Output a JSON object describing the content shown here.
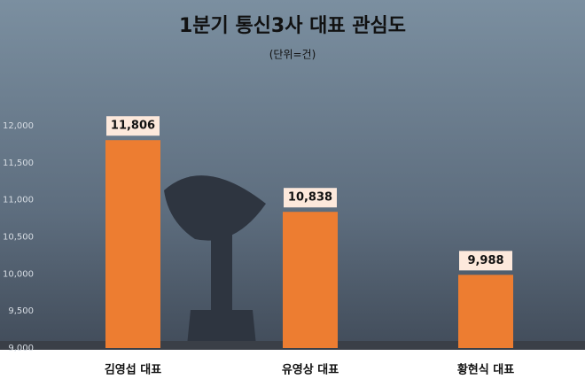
{
  "chart_data": {
    "type": "bar",
    "title": "1분기 통신3사 대표 관심도",
    "subtitle": "(단위=건)",
    "categories": [
      "김영섭 대표",
      "유영상 대표",
      "황현식 대표"
    ],
    "values": [
      11806,
      10838,
      9988
    ],
    "value_labels": [
      "11,806",
      "10,838",
      "9,988"
    ],
    "color": "#ed7d31",
    "ylim": [
      9000,
      12000
    ],
    "yticks": [
      {
        "value": 9000,
        "label": "9,000"
      },
      {
        "value": 9500,
        "label": "9,500"
      },
      {
        "value": 10000,
        "label": "10,000"
      },
      {
        "value": 10500,
        "label": "10,500"
      },
      {
        "value": 11000,
        "label": "11,000"
      },
      {
        "value": 11500,
        "label": "11,500"
      },
      {
        "value": 12000,
        "label": "12,000"
      }
    ],
    "grid": false
  }
}
